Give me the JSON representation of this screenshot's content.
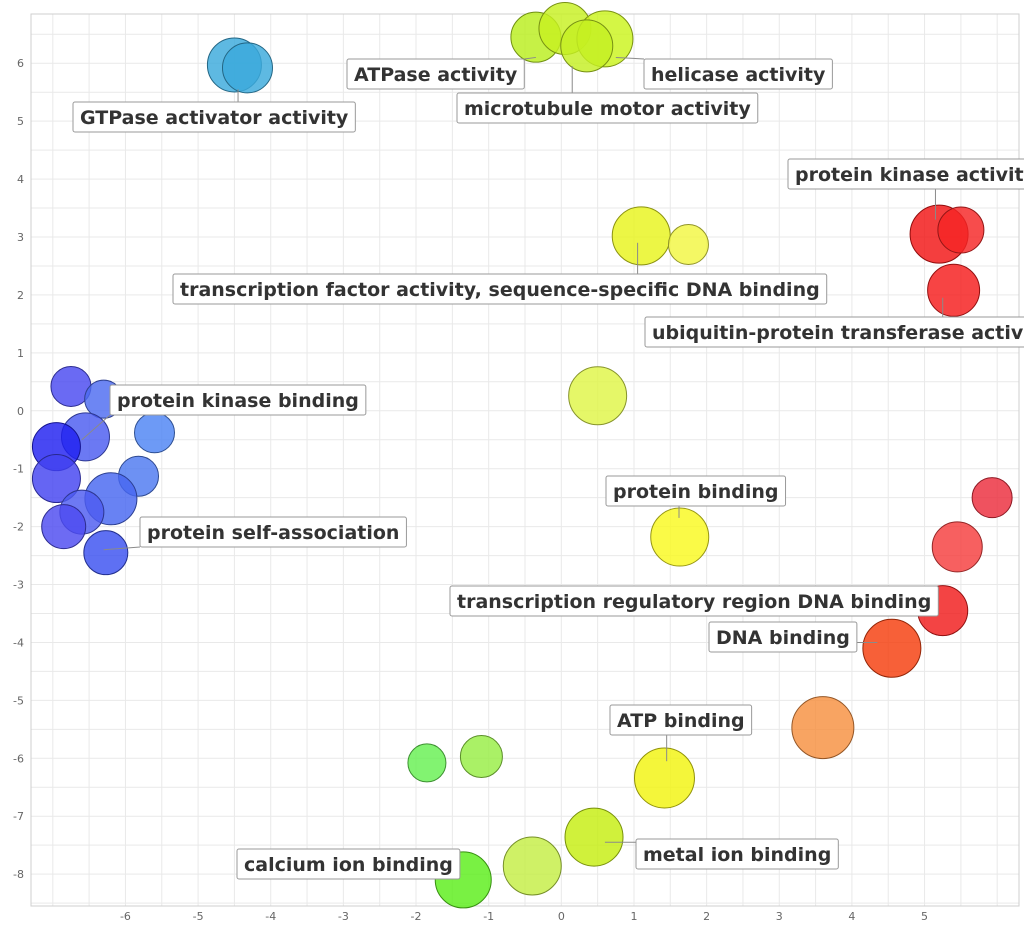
{
  "chart_data": {
    "type": "scatter",
    "title": "",
    "xlabel": "",
    "ylabel": "",
    "xlim": [
      -7.3,
      6.3
    ],
    "ylim": [
      -8.55,
      6.85
    ],
    "grid": true,
    "x_ticks": [
      -6,
      -5,
      -4,
      -3,
      -2,
      -1,
      0,
      1,
      2,
      3,
      4,
      5
    ],
    "y_ticks": [
      6,
      5,
      4,
      3,
      2,
      1,
      0,
      -1,
      -2,
      -3,
      -4,
      -5,
      -6,
      -7,
      -8
    ],
    "bubble_size_unit": "relative",
    "points": [
      {
        "x": -4.5,
        "y": 5.97,
        "size": 27,
        "color": "#3aaadc"
      },
      {
        "x": -4.32,
        "y": 5.92,
        "size": 25,
        "color": "#3aaadc"
      },
      {
        "x": -0.35,
        "y": 6.45,
        "size": 25,
        "color": "#b9ee1d"
      },
      {
        "x": 0.05,
        "y": 6.6,
        "size": 26,
        "color": "#c7f021"
      },
      {
        "x": 0.6,
        "y": 6.42,
        "size": 28,
        "color": "#cbf41c"
      },
      {
        "x": 0.35,
        "y": 6.3,
        "size": 26,
        "color": "#c4ef22"
      },
      {
        "x": 1.1,
        "y": 3.02,
        "size": 29,
        "color": "#e8f41c"
      },
      {
        "x": 1.75,
        "y": 2.87,
        "size": 20,
        "color": "#f1f742"
      },
      {
        "x": 5.2,
        "y": 3.05,
        "size": 29,
        "color": "#f21414"
      },
      {
        "x": 5.5,
        "y": 3.12,
        "size": 23,
        "color": "#f52424"
      },
      {
        "x": 5.4,
        "y": 2.08,
        "size": 26,
        "color": "#f51b1b"
      },
      {
        "x": -6.75,
        "y": 0.42,
        "size": 20,
        "color": "#4949f0"
      },
      {
        "x": -6.3,
        "y": 0.2,
        "size": 19,
        "color": "#4d6bf0"
      },
      {
        "x": -6.55,
        "y": -0.45,
        "size": 24,
        "color": "#4b5cf0"
      },
      {
        "x": -5.6,
        "y": -0.38,
        "size": 20,
        "color": "#4d84f4"
      },
      {
        "x": -6.95,
        "y": -0.62,
        "size": 24,
        "color": "#2020f0"
      },
      {
        "x": -5.82,
        "y": -1.13,
        "size": 20,
        "color": "#4d79f0"
      },
      {
        "x": -6.95,
        "y": -1.17,
        "size": 24,
        "color": "#4343f0"
      },
      {
        "x": -6.2,
        "y": -1.52,
        "size": 26,
        "color": "#4767f0"
      },
      {
        "x": -6.6,
        "y": -1.75,
        "size": 22,
        "color": "#4d5cf0"
      },
      {
        "x": -6.85,
        "y": -2.0,
        "size": 22,
        "color": "#4d4bf0"
      },
      {
        "x": -6.27,
        "y": -2.45,
        "size": 22,
        "color": "#3b50f0"
      },
      {
        "x": 0.5,
        "y": 0.26,
        "size": 29,
        "color": "#dff547"
      },
      {
        "x": 1.63,
        "y": -2.18,
        "size": 29,
        "color": "#f9f91f"
      },
      {
        "x": 5.93,
        "y": -1.5,
        "size": 20,
        "color": "#ec2c3c"
      },
      {
        "x": 5.45,
        "y": -2.35,
        "size": 25,
        "color": "#f53d3d"
      },
      {
        "x": 5.25,
        "y": -3.45,
        "size": 25,
        "color": "#f01b1b"
      },
      {
        "x": 4.55,
        "y": -4.1,
        "size": 29,
        "color": "#f53d0c"
      },
      {
        "x": 3.6,
        "y": -5.47,
        "size": 31,
        "color": "#f79040"
      },
      {
        "x": 1.42,
        "y": -6.34,
        "size": 30,
        "color": "#f1f40f"
      },
      {
        "x": -1.85,
        "y": -6.08,
        "size": 19,
        "color": "#66f052"
      },
      {
        "x": -1.1,
        "y": -5.97,
        "size": 21,
        "color": "#97ee44"
      },
      {
        "x": 0.45,
        "y": -7.36,
        "size": 29,
        "color": "#c6ee10"
      },
      {
        "x": -0.4,
        "y": -7.86,
        "size": 29,
        "color": "#c5ee44"
      },
      {
        "x": -1.35,
        "y": -8.1,
        "size": 28,
        "color": "#5cee1a"
      }
    ],
    "annotations": [
      {
        "text": "GTPase activator activity"
      },
      {
        "text": "ATPase activity"
      },
      {
        "text": "helicase activity"
      },
      {
        "text": "microtubule motor activity"
      },
      {
        "text": "protein kinase activity"
      },
      {
        "text": "transcription factor activity, sequence-specific DNA binding"
      },
      {
        "text": "ubiquitin-protein transferase activity"
      },
      {
        "text": "protein kinase binding"
      },
      {
        "text": "protein binding"
      },
      {
        "text": "protein self-association"
      },
      {
        "text": "transcription regulatory region DNA binding"
      },
      {
        "text": "DNA binding"
      },
      {
        "text": "ATP binding"
      },
      {
        "text": "metal ion binding"
      },
      {
        "text": "calcium ion binding"
      }
    ]
  }
}
